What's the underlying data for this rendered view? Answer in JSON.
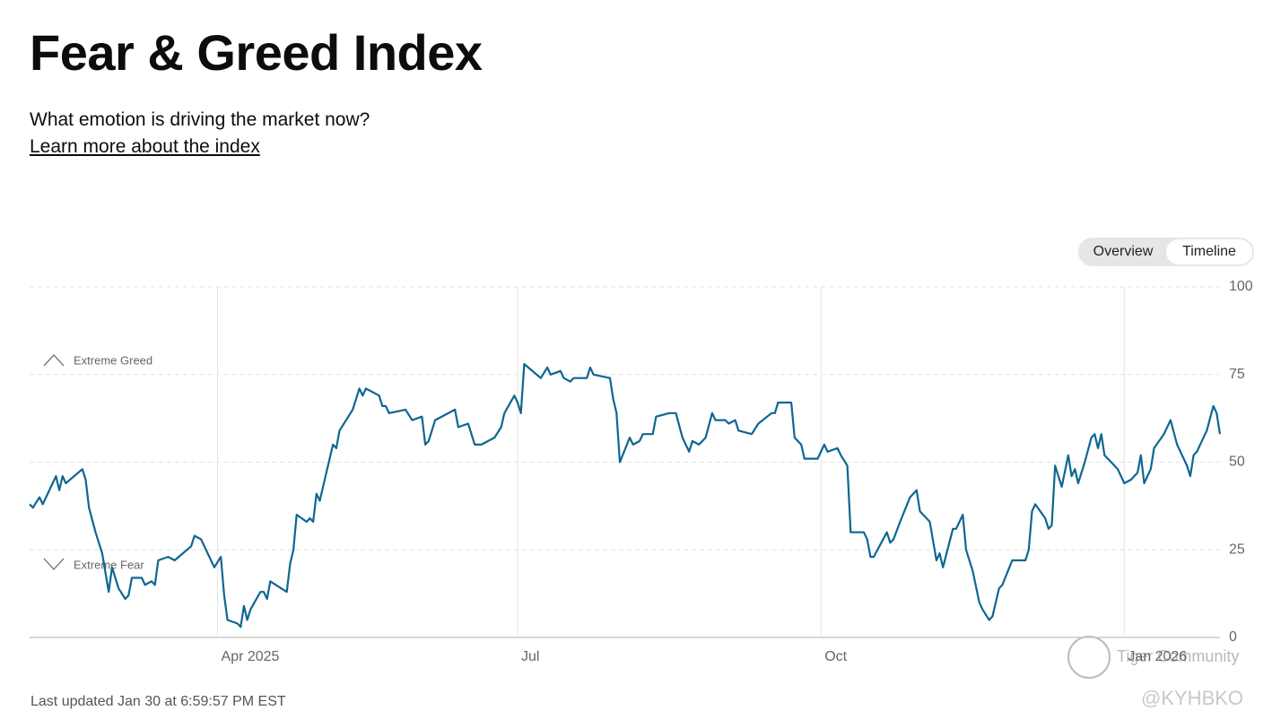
{
  "header": {
    "title": "Fear & Greed Index",
    "subtitle": "What emotion is driving the market now?",
    "link": "Learn more about the index"
  },
  "toggle": {
    "options": [
      "Overview",
      "Timeline"
    ],
    "active": 1
  },
  "footer": "Last updated Jan 30 at 6:59:57 PM EST",
  "watermarks": [
    "Tiger Community",
    "@KYHBKO"
  ],
  "chart_data": {
    "type": "line",
    "color": "#0f6690",
    "annotations": [
      "Extreme Greed",
      "Extreme Fear"
    ],
    "x": [
      0,
      1,
      3,
      4,
      7,
      8,
      9,
      10,
      11,
      16,
      17,
      18,
      20,
      22,
      24,
      25,
      27,
      29,
      30,
      31,
      34,
      35,
      37,
      38,
      39,
      42,
      44,
      49,
      50,
      52,
      56,
      58,
      59,
      60,
      63,
      64,
      65,
      66,
      67,
      70,
      71,
      72,
      73,
      78,
      79,
      80,
      81,
      84,
      85,
      86,
      87,
      88,
      90,
      92,
      93,
      94,
      98,
      100,
      101,
      102,
      106,
      107,
      108,
      109,
      114,
      116,
      119,
      120,
      121,
      123,
      129,
      130,
      133,
      135,
      137,
      141,
      143,
      144,
      147,
      148,
      149,
      150,
      155,
      157,
      158,
      161,
      162,
      164,
      165,
      169,
      170,
      171,
      176,
      177,
      178,
      179,
      182,
      183,
      185,
      186,
      189,
      190,
      194,
      196,
      198,
      200,
      201,
      203,
      205,
      207,
      208,
      211,
      212,
      214,
      215,
      219,
      221,
      225,
      226,
      227,
      231,
      232,
      234,
      235,
      237,
      239,
      241,
      242,
      245,
      246,
      248,
      249,
      253,
      254,
      255,
      256,
      260,
      261,
      262,
      264,
      267,
      269,
      270,
      273,
      275,
      276,
      277,
      280,
      281,
      283,
      284,
      286,
      288,
      289,
      291,
      292,
      294,
      295,
      298,
      302,
      303,
      304,
      305,
      308,
      309,
      310,
      311,
      313,
      315,
      316,
      317,
      318,
      320,
      322,
      323,
      324,
      325,
      326,
      329,
      330,
      332,
      334,
      336,
      337,
      338,
      340,
      341,
      344,
      346,
      348,
      351,
      352,
      353,
      354,
      355,
      357,
      359,
      360,
      361
    ],
    "values": [
      38,
      37,
      40,
      38,
      44,
      46,
      42,
      46,
      44,
      48,
      45,
      37,
      30,
      24,
      13,
      20,
      14,
      11,
      12,
      17,
      17,
      15,
      16,
      15,
      22,
      23,
      22,
      26,
      29,
      28,
      20,
      23,
      12,
      5,
      4,
      3,
      9,
      5,
      8,
      13,
      13,
      11,
      16,
      13,
      21,
      25,
      35,
      33,
      34,
      33,
      41,
      39,
      47,
      55,
      54,
      59,
      65,
      71,
      69,
      71,
      69,
      66,
      66,
      64,
      65,
      62,
      63,
      55,
      56,
      62,
      65,
      60,
      61,
      55,
      55,
      57,
      60,
      64,
      69,
      67,
      64,
      78,
      74,
      77,
      75,
      76,
      74,
      73,
      74,
      74,
      77,
      75,
      74,
      68,
      64,
      50,
      57,
      55,
      56,
      58,
      58,
      63,
      64,
      64,
      57,
      53,
      56,
      55,
      57,
      64,
      62,
      62,
      61,
      62,
      59,
      58,
      61,
      64,
      64,
      67,
      67,
      57,
      55,
      51,
      51,
      51,
      55,
      53,
      54,
      52,
      49,
      30,
      30,
      28,
      23,
      23,
      30,
      27,
      28,
      33,
      40,
      42,
      36,
      33,
      22,
      24,
      20,
      31,
      31,
      35,
      25,
      19,
      10,
      8,
      5,
      6,
      14,
      15,
      22,
      22,
      25,
      36,
      38,
      34,
      31,
      32,
      49,
      43,
      52,
      46,
      48,
      44,
      50,
      57,
      58,
      54,
      58,
      52,
      49,
      48,
      44,
      45,
      47,
      52,
      44,
      48,
      54,
      58,
      62,
      55,
      49,
      46,
      52,
      53,
      55,
      59,
      66,
      64,
      58
    ],
    "xlim": [
      0,
      361
    ],
    "xticks": [
      {
        "value": 57,
        "label": "Apr 2025"
      },
      {
        "value": 148,
        "label": "Jul"
      },
      {
        "value": 240,
        "label": "Oct"
      },
      {
        "value": 332,
        "label": "Jan 2026"
      }
    ],
    "ylim": [
      0,
      100
    ],
    "yticks": [
      0,
      25,
      50,
      75,
      100
    ],
    "grid": true
  }
}
